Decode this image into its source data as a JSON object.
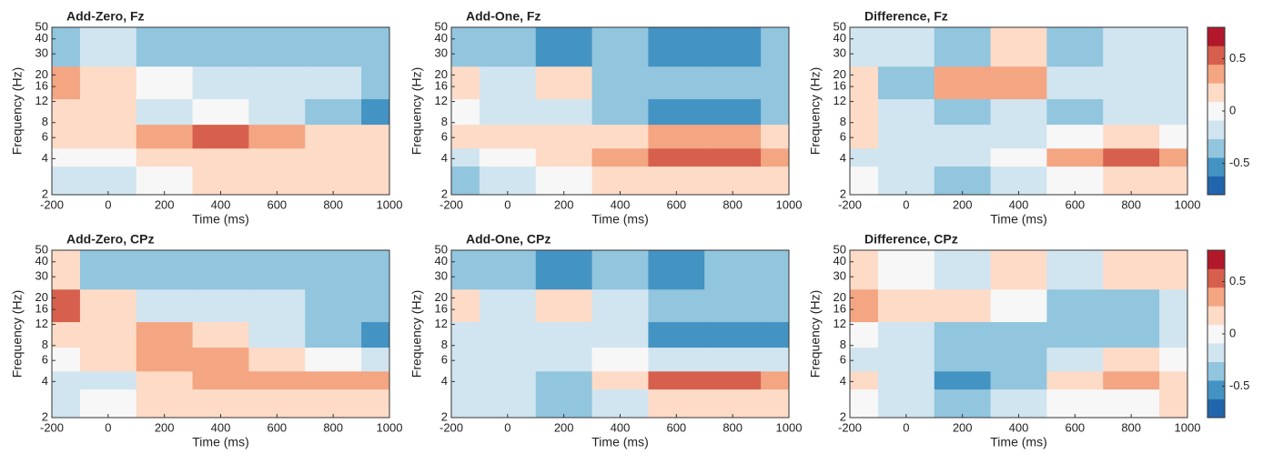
{
  "chart_data": [
    {
      "type": "heatmap",
      "title": "Add-Zero, Fz",
      "xlabel": "Time (ms)",
      "ylabel": "Frequency (Hz)",
      "x": [
        -200,
        0,
        200,
        400,
        600,
        800,
        1000
      ],
      "y": [
        3,
        4,
        6,
        10,
        16,
        35
      ],
      "values": [
        [
          -0.2,
          -0.2,
          0,
          0.1,
          0.1,
          0.1,
          0.1
        ],
        [
          0,
          0,
          0.1,
          0.2,
          0.2,
          0.2,
          0.2
        ],
        [
          0.2,
          0.2,
          0.4,
          0.5,
          0.3,
          0.1,
          0.1
        ],
        [
          0.2,
          0.1,
          -0.1,
          0,
          -0.2,
          -0.3,
          -0.5
        ],
        [
          0.4,
          0.1,
          0,
          -0.2,
          -0.2,
          -0.2,
          -0.3
        ],
        [
          -0.3,
          -0.2,
          -0.4,
          -0.3,
          -0.3,
          -0.3,
          -0.3
        ]
      ],
      "xlim": [
        -200,
        1000
      ],
      "xticks": [
        -200,
        0,
        200,
        400,
        600,
        800,
        1000
      ],
      "ylim": [
        2,
        50
      ],
      "yticks": [
        2,
        4,
        6,
        8,
        12,
        16,
        20,
        30,
        40,
        50
      ],
      "ylog": true,
      "clim": [
        -0.8,
        0.8
      ],
      "colors": [
        "#2166ac",
        "#4393c3",
        "#92c5de",
        "#d1e5f0",
        "#f7f7f7",
        "#fddbc7",
        "#f4a582",
        "#d6604d",
        "#b2182b"
      ]
    },
    {
      "type": "heatmap",
      "title": "Add-One, Fz",
      "xlabel": "Time (ms)",
      "ylabel": "Frequency (Hz)",
      "x": [
        -200,
        0,
        200,
        400,
        600,
        800,
        1000
      ],
      "y": [
        3,
        4,
        6,
        10,
        16,
        35
      ],
      "values": [
        [
          -0.3,
          -0.2,
          0,
          0.1,
          0.2,
          0.2,
          0.1
        ],
        [
          -0.2,
          0,
          0.1,
          0.3,
          0.6,
          0.6,
          0.4
        ],
        [
          0.2,
          0.1,
          0.1,
          0.2,
          0.3,
          0.3,
          0.2
        ],
        [
          0,
          -0.1,
          -0.2,
          -0.3,
          -0.5,
          -0.5,
          -0.4
        ],
        [
          0.2,
          -0.2,
          0.1,
          -0.3,
          -0.4,
          -0.4,
          -0.3
        ],
        [
          -0.3,
          -0.4,
          -0.5,
          -0.4,
          -0.5,
          -0.5,
          -0.3
        ]
      ],
      "xlim": [
        -200,
        1000
      ],
      "xticks": [
        -200,
        0,
        200,
        400,
        600,
        800,
        1000
      ],
      "ylim": [
        2,
        50
      ],
      "yticks": [
        2,
        4,
        6,
        8,
        12,
        16,
        20,
        30,
        40,
        50
      ],
      "ylog": true,
      "clim": [
        -0.8,
        0.8
      ],
      "colors": [
        "#2166ac",
        "#4393c3",
        "#92c5de",
        "#d1e5f0",
        "#f7f7f7",
        "#fddbc7",
        "#f4a582",
        "#d6604d",
        "#b2182b"
      ]
    },
    {
      "type": "heatmap",
      "title": "Difference, Fz",
      "xlabel": "Time (ms)",
      "ylabel": "Frequency (Hz)",
      "x": [
        -200,
        0,
        200,
        400,
        600,
        800,
        1000
      ],
      "y": [
        3,
        4,
        6,
        10,
        16,
        35
      ],
      "values": [
        [
          0,
          -0.1,
          -0.3,
          -0.2,
          0,
          0.1,
          0.1
        ],
        [
          -0.1,
          -0.2,
          -0.1,
          0,
          0.4,
          0.5,
          0.3
        ],
        [
          0.1,
          -0.1,
          -0.2,
          -0.2,
          0,
          0.1,
          0
        ],
        [
          0.1,
          -0.2,
          -0.3,
          -0.2,
          -0.4,
          -0.2,
          -0.1
        ],
        [
          0.2,
          -0.3,
          0.3,
          0.4,
          -0.2,
          -0.1,
          -0.1
        ],
        [
          -0.1,
          -0.2,
          -0.4,
          0.2,
          -0.3,
          -0.1,
          -0.2
        ]
      ],
      "xlim": [
        -200,
        1000
      ],
      "xticks": [
        -200,
        0,
        200,
        400,
        600,
        800,
        1000
      ],
      "ylim": [
        2,
        50
      ],
      "yticks": [
        2,
        4,
        6,
        8,
        12,
        16,
        20,
        30,
        40,
        50
      ],
      "ylog": true,
      "clim": [
        -0.8,
        0.8
      ],
      "colors": [
        "#2166ac",
        "#4393c3",
        "#92c5de",
        "#d1e5f0",
        "#f7f7f7",
        "#fddbc7",
        "#f4a582",
        "#d6604d",
        "#b2182b"
      ],
      "colorbar": true,
      "cticks": [
        -0.5,
        0,
        0.5
      ]
    },
    {
      "type": "heatmap",
      "title": "Add-Zero, CPz",
      "xlabel": "Time (ms)",
      "ylabel": "Frequency (Hz)",
      "x": [
        -200,
        0,
        200,
        400,
        600,
        800,
        1000
      ],
      "y": [
        3,
        4,
        6,
        10,
        16,
        35
      ],
      "values": [
        [
          -0.1,
          0,
          0.1,
          0.2,
          0.2,
          0.2,
          0.2
        ],
        [
          -0.2,
          -0.1,
          0.2,
          0.4,
          0.4,
          0.4,
          0.4
        ],
        [
          0,
          0.1,
          0.3,
          0.3,
          0.1,
          0,
          -0.1
        ],
        [
          0.2,
          0.2,
          0.4,
          0.2,
          -0.2,
          -0.4,
          -0.5
        ],
        [
          0.6,
          0.1,
          -0.1,
          -0.2,
          -0.2,
          -0.3,
          -0.3
        ],
        [
          0.1,
          -0.3,
          -0.4,
          -0.4,
          -0.3,
          -0.4,
          -0.4
        ]
      ],
      "xlim": [
        -200,
        1000
      ],
      "xticks": [
        -200,
        0,
        200,
        400,
        600,
        800,
        1000
      ],
      "ylim": [
        2,
        50
      ],
      "yticks": [
        2,
        4,
        6,
        8,
        12,
        16,
        20,
        30,
        40,
        50
      ],
      "ylog": true,
      "clim": [
        -0.8,
        0.8
      ],
      "colors": [
        "#2166ac",
        "#4393c3",
        "#92c5de",
        "#d1e5f0",
        "#f7f7f7",
        "#fddbc7",
        "#f4a582",
        "#d6604d",
        "#b2182b"
      ]
    },
    {
      "type": "heatmap",
      "title": "Add-One, CPz",
      "xlabel": "Time (ms)",
      "ylabel": "Frequency (Hz)",
      "x": [
        -200,
        0,
        200,
        400,
        600,
        800,
        1000
      ],
      "y": [
        3,
        4,
        6,
        10,
        16,
        35
      ],
      "values": [
        [
          -0.2,
          -0.2,
          -0.3,
          -0.1,
          0.1,
          0.2,
          0.2
        ],
        [
          -0.2,
          -0.2,
          -0.3,
          0.1,
          0.6,
          0.5,
          0.3
        ],
        [
          -0.1,
          -0.1,
          -0.1,
          0,
          -0.1,
          -0.1,
          -0.1
        ],
        [
          -0.2,
          -0.2,
          -0.1,
          -0.2,
          -0.5,
          -0.6,
          -0.5
        ],
        [
          0.2,
          -0.1,
          0.1,
          -0.2,
          -0.4,
          -0.3,
          -0.3
        ],
        [
          -0.3,
          -0.4,
          -0.5,
          -0.4,
          -0.5,
          -0.4,
          -0.3
        ]
      ],
      "xlim": [
        -200,
        1000
      ],
      "xticks": [
        -200,
        0,
        200,
        400,
        600,
        800,
        1000
      ],
      "ylim": [
        2,
        50
      ],
      "yticks": [
        2,
        4,
        6,
        8,
        12,
        16,
        20,
        30,
        40,
        50
      ],
      "ylog": true,
      "clim": [
        -0.8,
        0.8
      ],
      "colors": [
        "#2166ac",
        "#4393c3",
        "#92c5de",
        "#d1e5f0",
        "#f7f7f7",
        "#fddbc7",
        "#f4a582",
        "#d6604d",
        "#b2182b"
      ]
    },
    {
      "type": "heatmap",
      "title": "Difference, CPz",
      "xlabel": "Time (ms)",
      "ylabel": "Frequency (Hz)",
      "x": [
        -200,
        0,
        200,
        400,
        600,
        800,
        1000
      ],
      "y": [
        3,
        4,
        6,
        10,
        16,
        35
      ],
      "values": [
        [
          0,
          -0.1,
          -0.3,
          -0.2,
          0,
          0,
          0.1
        ],
        [
          0.1,
          -0.1,
          -0.5,
          -0.3,
          0.1,
          0.4,
          0.2
        ],
        [
          -0.1,
          -0.2,
          -0.4,
          -0.3,
          -0.1,
          0.1,
          0
        ],
        [
          0,
          -0.2,
          -0.4,
          -0.3,
          -0.3,
          -0.4,
          -0.2
        ],
        [
          0.3,
          0.1,
          0.2,
          0,
          -0.3,
          -0.3,
          -0.1
        ],
        [
          0.1,
          0,
          -0.1,
          0.1,
          -0.2,
          0.2,
          0.1
        ]
      ],
      "xlim": [
        -200,
        1000
      ],
      "xticks": [
        -200,
        0,
        200,
        400,
        600,
        800,
        1000
      ],
      "ylim": [
        2,
        50
      ],
      "yticks": [
        2,
        4,
        6,
        8,
        12,
        16,
        20,
        30,
        40,
        50
      ],
      "ylog": true,
      "clim": [
        -0.8,
        0.8
      ],
      "colors": [
        "#2166ac",
        "#4393c3",
        "#92c5de",
        "#d1e5f0",
        "#f7f7f7",
        "#fddbc7",
        "#f4a582",
        "#d6604d",
        "#b2182b"
      ],
      "colorbar": true,
      "cticks": [
        -0.5,
        0,
        0.5
      ]
    }
  ]
}
